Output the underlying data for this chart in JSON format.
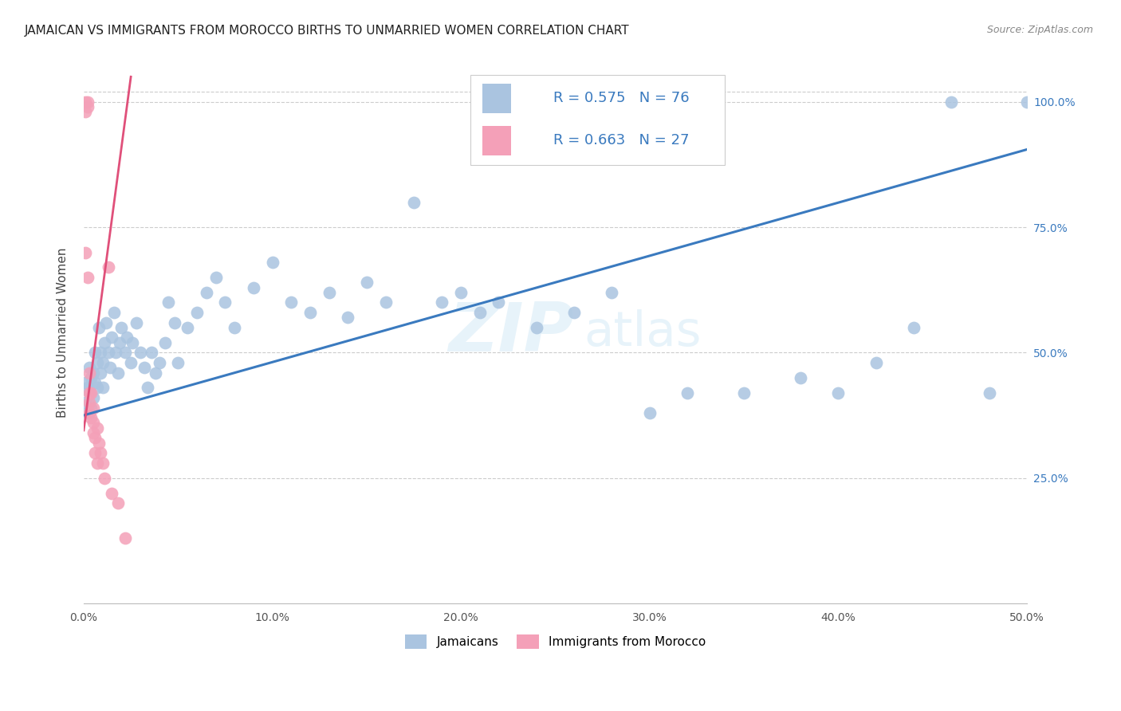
{
  "title": "JAMAICAN VS IMMIGRANTS FROM MOROCCO BIRTHS TO UNMARRIED WOMEN CORRELATION CHART",
  "source": "Source: ZipAtlas.com",
  "ylabel": "Births to Unmarried Women",
  "xlim": [
    0.0,
    0.5
  ],
  "ylim": [
    0.0,
    1.08
  ],
  "xtick_labels": [
    "0.0%",
    "10.0%",
    "20.0%",
    "30.0%",
    "40.0%",
    "50.0%"
  ],
  "xtick_values": [
    0.0,
    0.1,
    0.2,
    0.3,
    0.4,
    0.5
  ],
  "ytick_labels": [
    "25.0%",
    "50.0%",
    "75.0%",
    "100.0%"
  ],
  "ytick_values": [
    0.25,
    0.5,
    0.75,
    1.0
  ],
  "blue_R": 0.575,
  "blue_N": 76,
  "pink_R": 0.663,
  "pink_N": 27,
  "blue_color": "#aac4e0",
  "pink_color": "#f4a0b8",
  "blue_line_color": "#3a7abf",
  "pink_line_color": "#e0507a",
  "legend_blue_label": "Jamaicans",
  "legend_pink_label": "Immigrants from Morocco",
  "watermark_zip": "ZIP",
  "watermark_atlas": "atlas",
  "blue_x": [
    0.001,
    0.001,
    0.002,
    0.002,
    0.003,
    0.003,
    0.004,
    0.004,
    0.005,
    0.005,
    0.006,
    0.006,
    0.007,
    0.007,
    0.008,
    0.009,
    0.009,
    0.01,
    0.01,
    0.011,
    0.012,
    0.013,
    0.014,
    0.015,
    0.016,
    0.017,
    0.018,
    0.019,
    0.02,
    0.022,
    0.023,
    0.025,
    0.026,
    0.028,
    0.03,
    0.032,
    0.034,
    0.036,
    0.038,
    0.04,
    0.043,
    0.045,
    0.048,
    0.05,
    0.055,
    0.06,
    0.065,
    0.07,
    0.075,
    0.08,
    0.09,
    0.1,
    0.11,
    0.12,
    0.13,
    0.14,
    0.15,
    0.16,
    0.175,
    0.19,
    0.2,
    0.21,
    0.22,
    0.24,
    0.26,
    0.28,
    0.3,
    0.32,
    0.35,
    0.38,
    0.4,
    0.42,
    0.44,
    0.46,
    0.48,
    0.5
  ],
  "blue_y": [
    0.4,
    0.44,
    0.38,
    0.43,
    0.42,
    0.47,
    0.39,
    0.45,
    0.41,
    0.46,
    0.5,
    0.44,
    0.43,
    0.48,
    0.55,
    0.46,
    0.5,
    0.43,
    0.48,
    0.52,
    0.56,
    0.5,
    0.47,
    0.53,
    0.58,
    0.5,
    0.46,
    0.52,
    0.55,
    0.5,
    0.53,
    0.48,
    0.52,
    0.56,
    0.5,
    0.47,
    0.43,
    0.5,
    0.46,
    0.48,
    0.52,
    0.6,
    0.56,
    0.48,
    0.55,
    0.58,
    0.62,
    0.65,
    0.6,
    0.55,
    0.63,
    0.68,
    0.6,
    0.58,
    0.62,
    0.57,
    0.64,
    0.6,
    0.8,
    0.6,
    0.62,
    0.58,
    0.6,
    0.55,
    0.58,
    0.62,
    0.38,
    0.42,
    0.42,
    0.45,
    0.42,
    0.48,
    0.55,
    1.0,
    0.42,
    1.0
  ],
  "pink_x": [
    0.001,
    0.001,
    0.001,
    0.002,
    0.002,
    0.002,
    0.003,
    0.003,
    0.003,
    0.003,
    0.004,
    0.004,
    0.005,
    0.005,
    0.005,
    0.006,
    0.006,
    0.007,
    0.007,
    0.008,
    0.009,
    0.01,
    0.011,
    0.013,
    0.015,
    0.018,
    0.022
  ],
  "pink_y": [
    1.0,
    0.98,
    0.7,
    1.0,
    0.99,
    0.65,
    0.38,
    0.42,
    0.4,
    0.46,
    0.37,
    0.42,
    0.39,
    0.36,
    0.34,
    0.33,
    0.3,
    0.35,
    0.28,
    0.32,
    0.3,
    0.28,
    0.25,
    0.67,
    0.22,
    0.2,
    0.13
  ],
  "blue_trend_x": [
    0.0,
    0.5
  ],
  "blue_trend_y": [
    0.375,
    0.905
  ],
  "pink_trend_x": [
    0.0,
    0.025
  ],
  "pink_trend_y": [
    0.345,
    1.05
  ]
}
